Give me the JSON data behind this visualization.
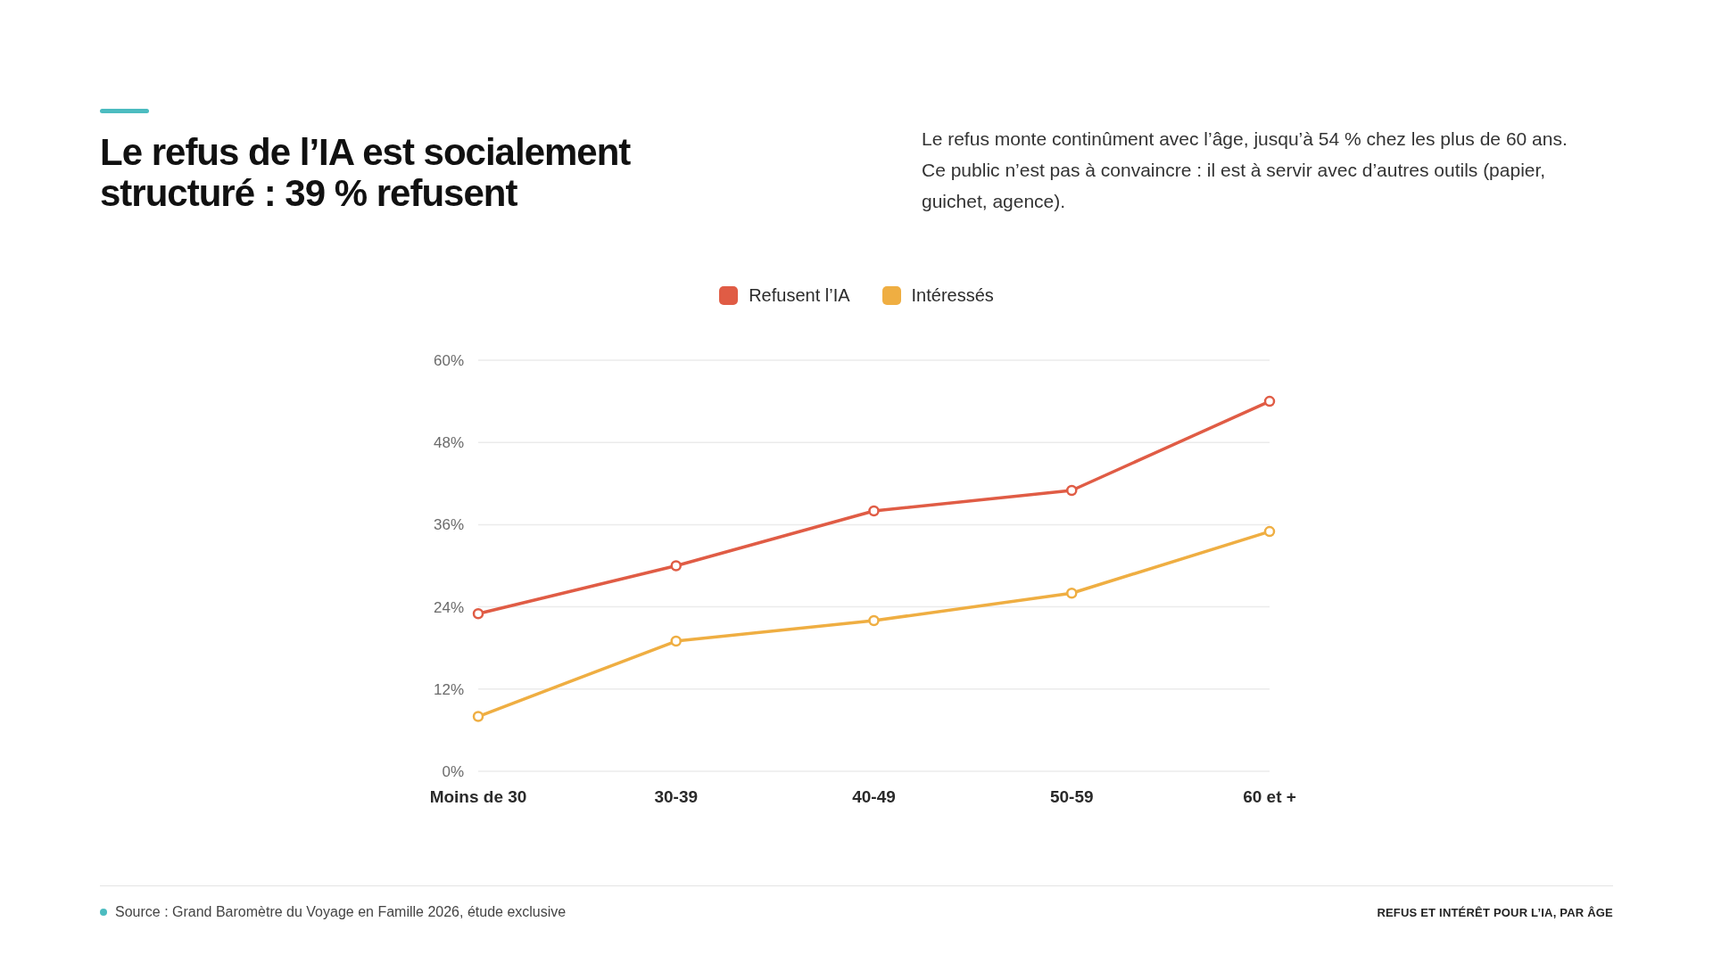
{
  "chart_data": {
    "type": "line",
    "title": "Le refus de l’IA est socialement structuré : 39 % refusent",
    "subtitle": "Le refus monte continûment avec l’âge, jusqu’à 54 % chez les plus de 60 ans. Ce public n’est pas à convaincre : il est à servir avec d’autres outils (papier, guichet, agence).",
    "categories": [
      "Moins de 30",
      "30-39",
      "40-49",
      "50-59",
      "60 et +"
    ],
    "series": [
      {
        "name": "Refusent l’IA",
        "color": "#e05c45",
        "values": [
          23,
          30,
          38,
          41,
          54
        ]
      },
      {
        "name": "Intéressés",
        "color": "#efae42",
        "values": [
          8,
          19,
          22,
          26,
          35
        ]
      }
    ],
    "ylim": [
      0,
      60
    ],
    "yticks": [
      {
        "value": 0,
        "label": "0%"
      },
      {
        "value": 12,
        "label": "12%"
      },
      {
        "value": 24,
        "label": "24%"
      },
      {
        "value": 36,
        "label": "36%"
      },
      {
        "value": 48,
        "label": "48%"
      },
      {
        "value": 60,
        "label": "60%"
      }
    ],
    "grid": "y",
    "legend": "top",
    "marker": "circle",
    "line_style": "solid",
    "annotations": [
      "Source : Grand Baromètre du Voyage en Famille 2026, étude exclusive",
      "REFUS ET INTÉRÊT POUR L’IA, PAR ÂGE"
    ]
  }
}
